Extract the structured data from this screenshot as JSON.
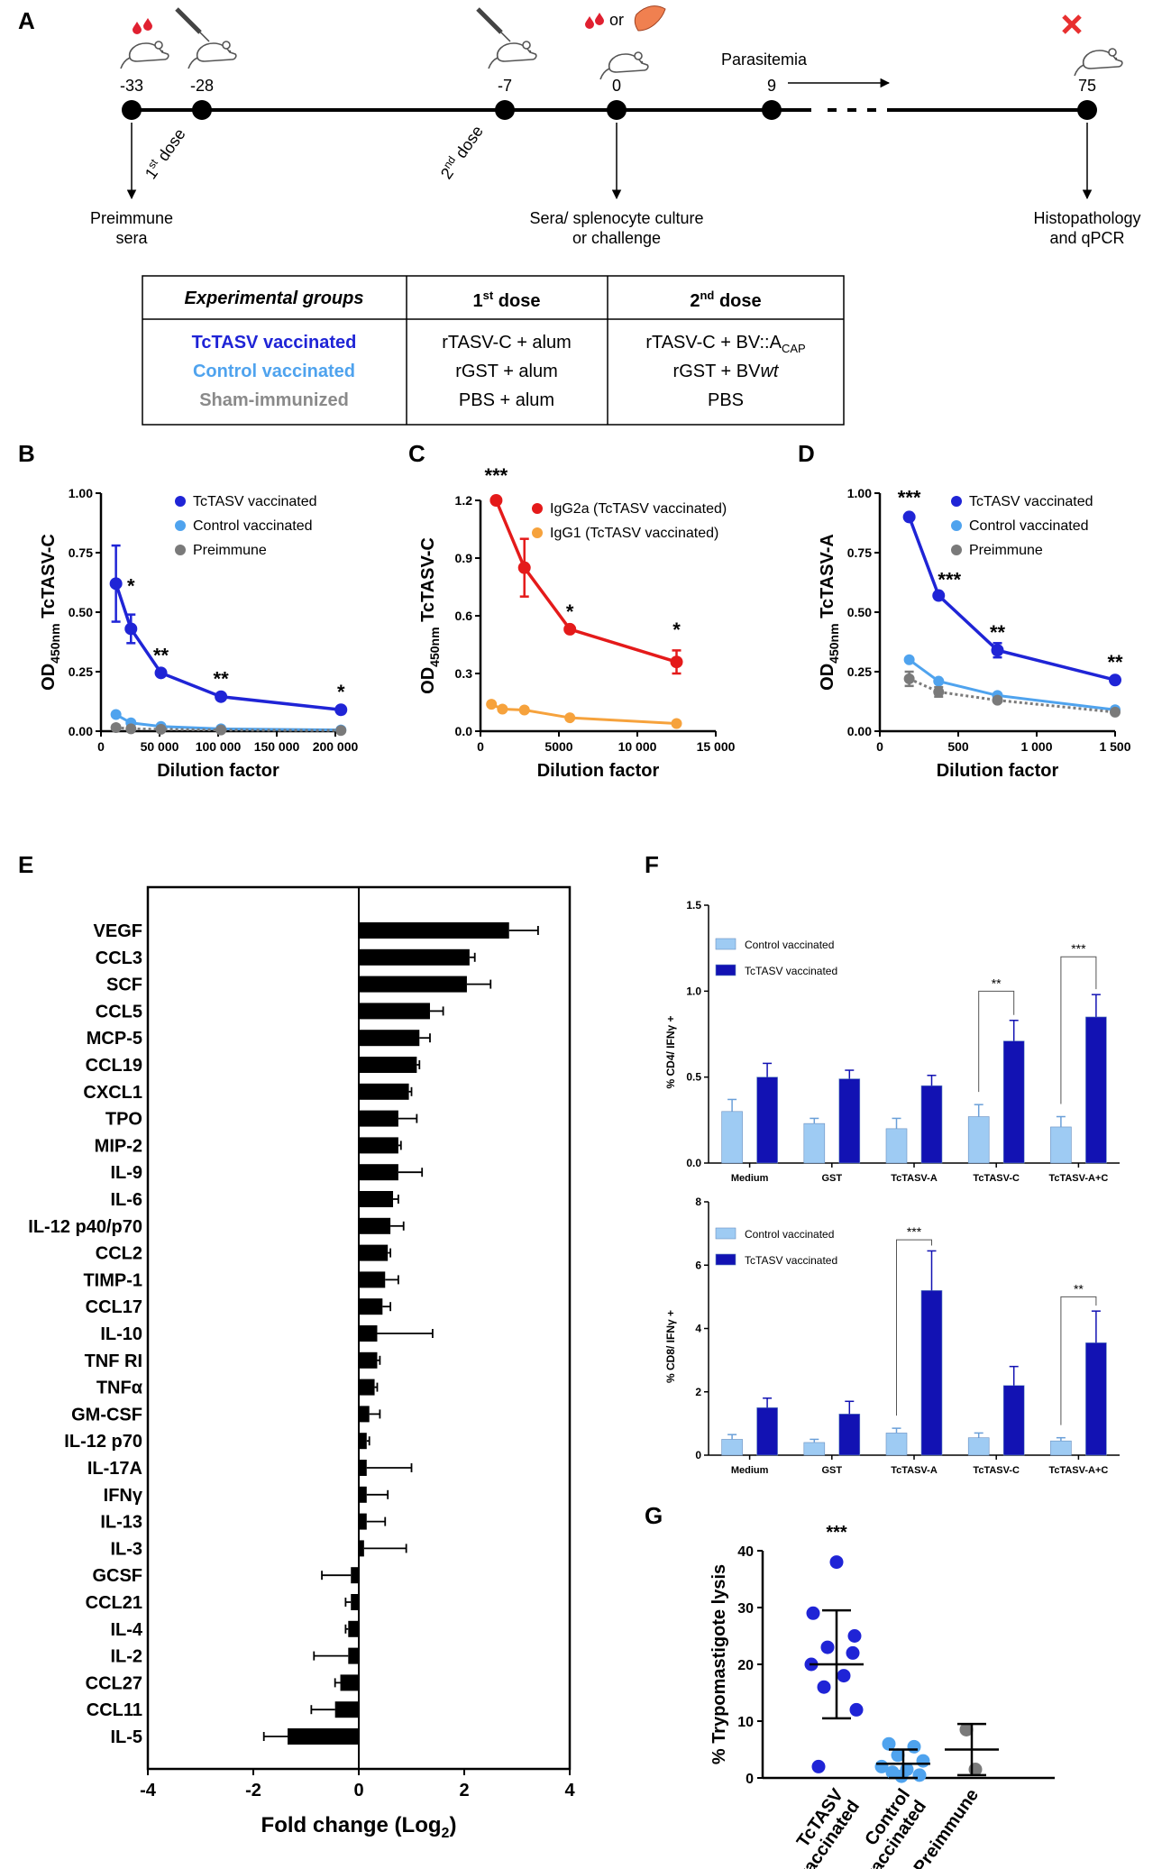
{
  "panel_labels": {
    "A": "A",
    "B": "B",
    "C": "C",
    "D": "D",
    "E": "E",
    "F": "F",
    "G": "G"
  },
  "colors": {
    "blue": "#1f24d6",
    "light_blue": "#4fa3ee",
    "gray": "#7a7a7a",
    "red": "#e41a1a",
    "orange": "#f6a23c",
    "f_light": "#9ecbf3",
    "f_dark": "#1212b3"
  },
  "timeline": {
    "days": [
      "-33",
      "-28",
      "-7",
      "0",
      "9",
      "75"
    ],
    "parasitemia": "Parasitemia",
    "or": "or",
    "dose1": "1",
    "dose2": "2",
    "dose1_sup": "st",
    "dose2_sup": "nd",
    "dose_word": "dose",
    "preimmune_l1": "Preimmune",
    "preimmune_l2": "sera",
    "sera_l1": "Sera/ splenocyte culture",
    "sera_l2": "or challenge",
    "histo_l1": "Histopathology",
    "histo_l2": "and qPCR"
  },
  "groups_table": {
    "h_groups": "Experimental groups",
    "h_dose_num": "1",
    "h_dose_sup": "st",
    "h_dose_word": "dose",
    "h2_dose_num": "2",
    "h2_dose_sup": "nd",
    "h2_dose_word": "dose",
    "rows": [
      {
        "group": "TcTASV vaccinated",
        "first": "rTASV-C + alum",
        "second_a": "rTASV-C + BV::A",
        "second_sub": "CAP",
        "second_b": ""
      },
      {
        "group": "Control vaccinated",
        "first": "rGST + alum",
        "second_a": "rGST + BV",
        "second_sub": "",
        "second_b": "wt"
      },
      {
        "group": "Sham-immunized",
        "first": "PBS + alum",
        "second_a": "PBS",
        "second_sub": "",
        "second_b": ""
      }
    ]
  },
  "chart_data": [
    {
      "id": "B",
      "type": "line",
      "ylabel_main": "OD",
      "ylabel_sub": "450nm",
      "ylabel_tail": " TcTASV-C",
      "xlabel": "Dilution factor",
      "xlim": [
        0,
        200000
      ],
      "ylim": [
        0,
        1
      ],
      "xticks": [
        "0",
        "50 000",
        "100 000",
        "150 000",
        "200 000"
      ],
      "yticks": [
        "0.00",
        "0.25",
        "0.50",
        "0.75",
        "1.00"
      ],
      "series": [
        {
          "name": "TcTASV vaccinated",
          "x": [
            12800,
            25600,
            51200,
            102400,
            204800
          ],
          "y": [
            0.62,
            0.43,
            0.245,
            0.145,
            0.09
          ],
          "err": [
            0.16,
            0.06,
            0,
            0,
            0
          ],
          "sig": [
            "",
            "*",
            "**",
            "**",
            "*"
          ]
        },
        {
          "name": "Control vaccinated",
          "x": [
            12800,
            25600,
            51200,
            102400,
            204800
          ],
          "y": [
            0.07,
            0.035,
            0.02,
            0.01,
            0.005
          ],
          "err": [
            0,
            0,
            0,
            0,
            0
          ]
        },
        {
          "name": "Preimmune",
          "x": [
            12800,
            25600,
            51200,
            102400,
            204800
          ],
          "y": [
            0.015,
            0.01,
            0.008,
            0.005,
            0.003
          ],
          "err": [
            0,
            0,
            0,
            0,
            0
          ]
        }
      ]
    },
    {
      "id": "C",
      "type": "line",
      "ylabel_main": "OD",
      "ylabel_sub": "450nm",
      "ylabel_tail": " TcTASV-C",
      "xlabel": "Dilution factor",
      "xlim": [
        0,
        15000
      ],
      "ylim": [
        0,
        1.2
      ],
      "xticks": [
        "0",
        "5000",
        "10 000",
        "15 000"
      ],
      "yticks": [
        "0.0",
        "0.3",
        "0.6",
        "0.9",
        "1.2"
      ],
      "series": [
        {
          "name": "IgG2a (TcTASV vaccinated)",
          "x": [
            1000,
            2800,
            5700,
            12500
          ],
          "y": [
            1.2,
            0.85,
            0.53,
            0.36
          ],
          "err": [
            0,
            0.15,
            0,
            0.06
          ],
          "sig": [
            "***",
            "",
            "*",
            "*"
          ]
        },
        {
          "name": "IgG1 (TcTASV vaccinated)",
          "x": [
            700,
            1400,
            2800,
            5700,
            12500
          ],
          "y": [
            0.14,
            0.115,
            0.11,
            0.07,
            0.04
          ],
          "err": [
            0,
            0,
            0,
            0,
            0
          ]
        }
      ]
    },
    {
      "id": "D",
      "type": "line",
      "ylabel_main": "OD",
      "ylabel_sub": "450nm",
      "ylabel_tail": " TcTASV-A",
      "xlabel": "Dilution factor",
      "xlim": [
        0,
        1600
      ],
      "ylim": [
        0,
        1
      ],
      "xticks": [
        "0",
        "500",
        "1 000",
        "1 500"
      ],
      "yticks": [
        "0.00",
        "0.25",
        "0.50",
        "0.75",
        "1.00"
      ],
      "series": [
        {
          "name": "TcTASV vaccinated",
          "x": [
            200,
            400,
            800,
            1600
          ],
          "y": [
            0.9,
            0.57,
            0.34,
            0.215
          ],
          "err": [
            0,
            0,
            0.03,
            0
          ],
          "sig": [
            "***",
            "***",
            "**",
            "**"
          ]
        },
        {
          "name": "Control vaccinated",
          "x": [
            200,
            400,
            800,
            1600
          ],
          "y": [
            0.3,
            0.21,
            0.15,
            0.09
          ],
          "err": [
            0,
            0,
            0,
            0
          ]
        },
        {
          "name": "Preimmune",
          "x": [
            200,
            400,
            800,
            1600
          ],
          "y": [
            0.22,
            0.165,
            0.13,
            0.08
          ],
          "err": [
            0.03,
            0.02,
            0,
            0
          ]
        }
      ]
    },
    {
      "id": "E",
      "type": "bar",
      "orientation": "horizontal",
      "xlabel": "Fold change (Log",
      "xlabel_sub": "2",
      "xlabel_tail": ")",
      "xlim": [
        -4,
        4
      ],
      "xticks": [
        "-4",
        "-2",
        "0",
        "2",
        "4"
      ],
      "categories": [
        "VEGF",
        "CCL3",
        "SCF",
        "CCL5",
        "MCP-5",
        "CCL19",
        "CXCL1",
        "TPO",
        "MIP-2",
        "IL-9",
        "IL-6",
        "IL-12 p40/p70",
        "CCL2",
        "TIMP-1",
        "CCL17",
        "IL-10",
        "TNF RI",
        "TNFα",
        "GM-CSF",
        "IL-12 p70",
        "IL-17A",
        "IFNγ",
        "IL-13",
        "IL-3",
        "GCSF",
        "CCL21",
        "IL-4",
        "IL-2",
        "CCL27",
        "CCL11",
        "IL-5"
      ],
      "values": [
        2.85,
        2.1,
        2.05,
        1.35,
        1.15,
        1.1,
        0.95,
        0.75,
        0.75,
        0.75,
        0.65,
        0.6,
        0.55,
        0.5,
        0.45,
        0.35,
        0.35,
        0.3,
        0.2,
        0.15,
        0.15,
        0.15,
        0.15,
        0.1,
        -0.15,
        -0.15,
        -0.2,
        -0.2,
        -0.35,
        -0.45,
        -1.35
      ],
      "errors": [
        0.55,
        0.1,
        0.45,
        0.25,
        0.2,
        0.05,
        0.05,
        0.35,
        0.05,
        0.45,
        0.1,
        0.25,
        0.05,
        0.25,
        0.15,
        1.05,
        0.05,
        0.05,
        0.2,
        0.05,
        0.85,
        0.4,
        0.35,
        0.8,
        0.55,
        0.1,
        0.05,
        0.65,
        0.1,
        0.45,
        0.45
      ]
    },
    {
      "id": "F1",
      "type": "bar",
      "ylabel": "% CD4/ IFNγ +",
      "ylim": [
        0,
        1.5
      ],
      "yticks": [
        "0.0",
        "0.5",
        "1.0",
        "1.5"
      ],
      "categories": [
        "Medium",
        "GST",
        "TcTASV-A",
        "TcTASV-C",
        "TcTASV-A+C"
      ],
      "series": [
        {
          "name": "Control vaccinated",
          "values": [
            0.3,
            0.23,
            0.2,
            0.27,
            0.21
          ],
          "errors": [
            0.07,
            0.03,
            0.06,
            0.07,
            0.06
          ]
        },
        {
          "name": "TcTASV vaccinated",
          "values": [
            0.5,
            0.49,
            0.45,
            0.71,
            0.85
          ],
          "errors": [
            0.08,
            0.05,
            0.06,
            0.12,
            0.13
          ]
        }
      ],
      "sig": [
        {
          "cat": 3,
          "label": "**",
          "y": 1.0
        },
        {
          "cat": 4,
          "label": "***",
          "y": 1.2
        }
      ]
    },
    {
      "id": "F2",
      "type": "bar",
      "ylabel": "% CD8/ IFNγ +",
      "ylim": [
        0,
        8
      ],
      "yticks": [
        "0",
        "2",
        "4",
        "6",
        "8"
      ],
      "categories": [
        "Medium",
        "GST",
        "TcTASV-A",
        "TcTASV-C",
        "TcTASV-A+C"
      ],
      "series": [
        {
          "name": "Control vaccinated",
          "values": [
            0.5,
            0.4,
            0.7,
            0.55,
            0.45
          ],
          "errors": [
            0.15,
            0.1,
            0.15,
            0.15,
            0.1
          ]
        },
        {
          "name": "TcTASV vaccinated",
          "values": [
            1.5,
            1.3,
            5.2,
            2.2,
            3.55
          ],
          "errors": [
            0.3,
            0.4,
            1.25,
            0.6,
            1.0
          ]
        }
      ],
      "sig": [
        {
          "cat": 2,
          "label": "***",
          "y": 6.8
        },
        {
          "cat": 4,
          "label": "**",
          "y": 5.0
        }
      ]
    },
    {
      "id": "G",
      "type": "scatter",
      "ylabel": "% Trypomastigote lysis",
      "ylim": [
        0,
        40
      ],
      "yticks": [
        "0",
        "10",
        "20",
        "30",
        "40"
      ],
      "categories": [
        "TcTASV\nvaccinated",
        "Control\nvaccinated",
        "Preimmune"
      ],
      "groups": [
        {
          "points": [
            38,
            29,
            25,
            23,
            22,
            20,
            18,
            16,
            12,
            2
          ],
          "mean": 20,
          "sd": 9.5,
          "sig": "***"
        },
        {
          "points": [
            6,
            5.5,
            4,
            3,
            2,
            1.5,
            1,
            0.5,
            0.3
          ],
          "mean": 2.5,
          "sd": 2.5
        },
        {
          "points": [
            8.5,
            1.5
          ],
          "mean": 5,
          "sd": 4.5
        }
      ]
    }
  ]
}
